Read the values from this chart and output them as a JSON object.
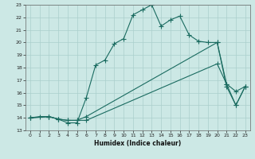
{
  "xlabel": "Humidex (Indice chaleur)",
  "bg_color": "#cce8e5",
  "grid_color": "#aacfcc",
  "line_color": "#1a6b60",
  "xlim": [
    -0.5,
    23.5
  ],
  "ylim": [
    13,
    23
  ],
  "xticks": [
    0,
    1,
    2,
    3,
    4,
    5,
    6,
    7,
    8,
    9,
    10,
    11,
    12,
    13,
    14,
    15,
    16,
    17,
    18,
    19,
    20,
    21,
    22,
    23
  ],
  "yticks": [
    13,
    14,
    15,
    16,
    17,
    18,
    19,
    20,
    21,
    22,
    23
  ],
  "line1_x": [
    0,
    1,
    2,
    3,
    4,
    5,
    6,
    7,
    8,
    9,
    10,
    11,
    12,
    13,
    14,
    15,
    16,
    17,
    18,
    19,
    20,
    21,
    22,
    23
  ],
  "line1_y": [
    14.0,
    14.1,
    14.1,
    13.9,
    13.6,
    13.6,
    15.6,
    18.2,
    18.6,
    19.9,
    20.3,
    22.2,
    22.6,
    23.0,
    21.3,
    21.8,
    22.1,
    20.6,
    20.1,
    20.0,
    20.0,
    16.5,
    15.0,
    16.5
  ],
  "line2_x": [
    0,
    2,
    3,
    4,
    5,
    6,
    20,
    21,
    22,
    23
  ],
  "line2_y": [
    14.0,
    14.1,
    13.9,
    13.8,
    13.8,
    14.1,
    20.0,
    16.7,
    16.1,
    16.5
  ],
  "line3_x": [
    0,
    2,
    3,
    4,
    5,
    6,
    20,
    21,
    22,
    23
  ],
  "line3_y": [
    14.0,
    14.1,
    13.9,
    13.8,
    13.8,
    13.8,
    18.3,
    16.7,
    15.0,
    16.5
  ]
}
